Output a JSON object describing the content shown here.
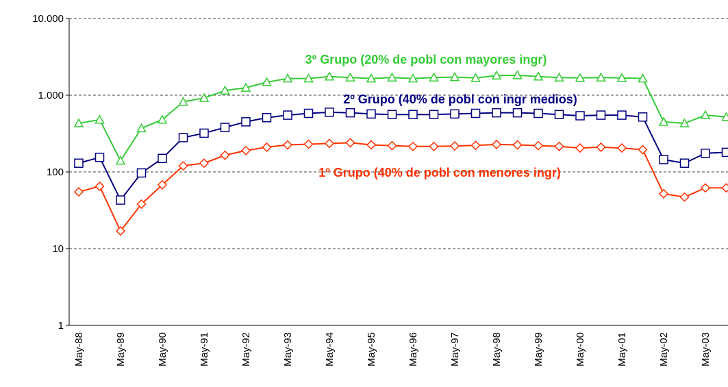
{
  "chart_data": {
    "type": "line",
    "log_scale": true,
    "grid": true,
    "categories": [
      "May-88",
      null,
      "May-89",
      null,
      "May-90",
      null,
      "May-91",
      null,
      "May-92",
      null,
      "May-93",
      null,
      "May-94",
      null,
      "May-95",
      null,
      "May-96",
      null,
      "May-97",
      null,
      "May-98",
      null,
      "May-99",
      null,
      "May-00",
      null,
      "May-01",
      null,
      "May-02",
      null,
      "May-03",
      null
    ],
    "ylim": [
      1,
      10000
    ],
    "yticks": [
      1,
      10,
      100,
      {
        "value": 1000,
        "label": "1.000"
      },
      {
        "value": 10000,
        "label": "10.000"
      }
    ],
    "series": [
      {
        "name": "3º Grupo (20% de pobl con mayores ingr)",
        "color": "#33cc33",
        "marker": "triangle",
        "values": [
          430,
          480,
          140,
          370,
          480,
          820,
          920,
          1150,
          1250,
          1480,
          1650,
          1650,
          1750,
          1700,
          1650,
          1700,
          1650,
          1700,
          1720,
          1680,
          1800,
          1820,
          1750,
          1700,
          1680,
          1700,
          1680,
          1650,
          450,
          430,
          550,
          520
        ]
      },
      {
        "name": "2º Grupo (40% de pobl con ingr medios)",
        "color": "#000080",
        "marker": "square",
        "values": [
          130,
          155,
          43,
          97,
          150,
          280,
          320,
          380,
          450,
          510,
          550,
          580,
          600,
          590,
          570,
          560,
          560,
          560,
          570,
          580,
          590,
          590,
          580,
          560,
          540,
          550,
          550,
          520,
          145,
          130,
          175,
          180
        ]
      },
      {
        "name": "1º Grupo (40% de pobl con menores ingr)",
        "color": "#ff3300",
        "marker": "diamond",
        "values": [
          55,
          65,
          17,
          38,
          68,
          120,
          130,
          165,
          190,
          210,
          225,
          230,
          235,
          240,
          225,
          220,
          215,
          215,
          218,
          222,
          228,
          225,
          220,
          215,
          205,
          210,
          205,
          195,
          52,
          47,
          62,
          62
        ]
      }
    ]
  }
}
